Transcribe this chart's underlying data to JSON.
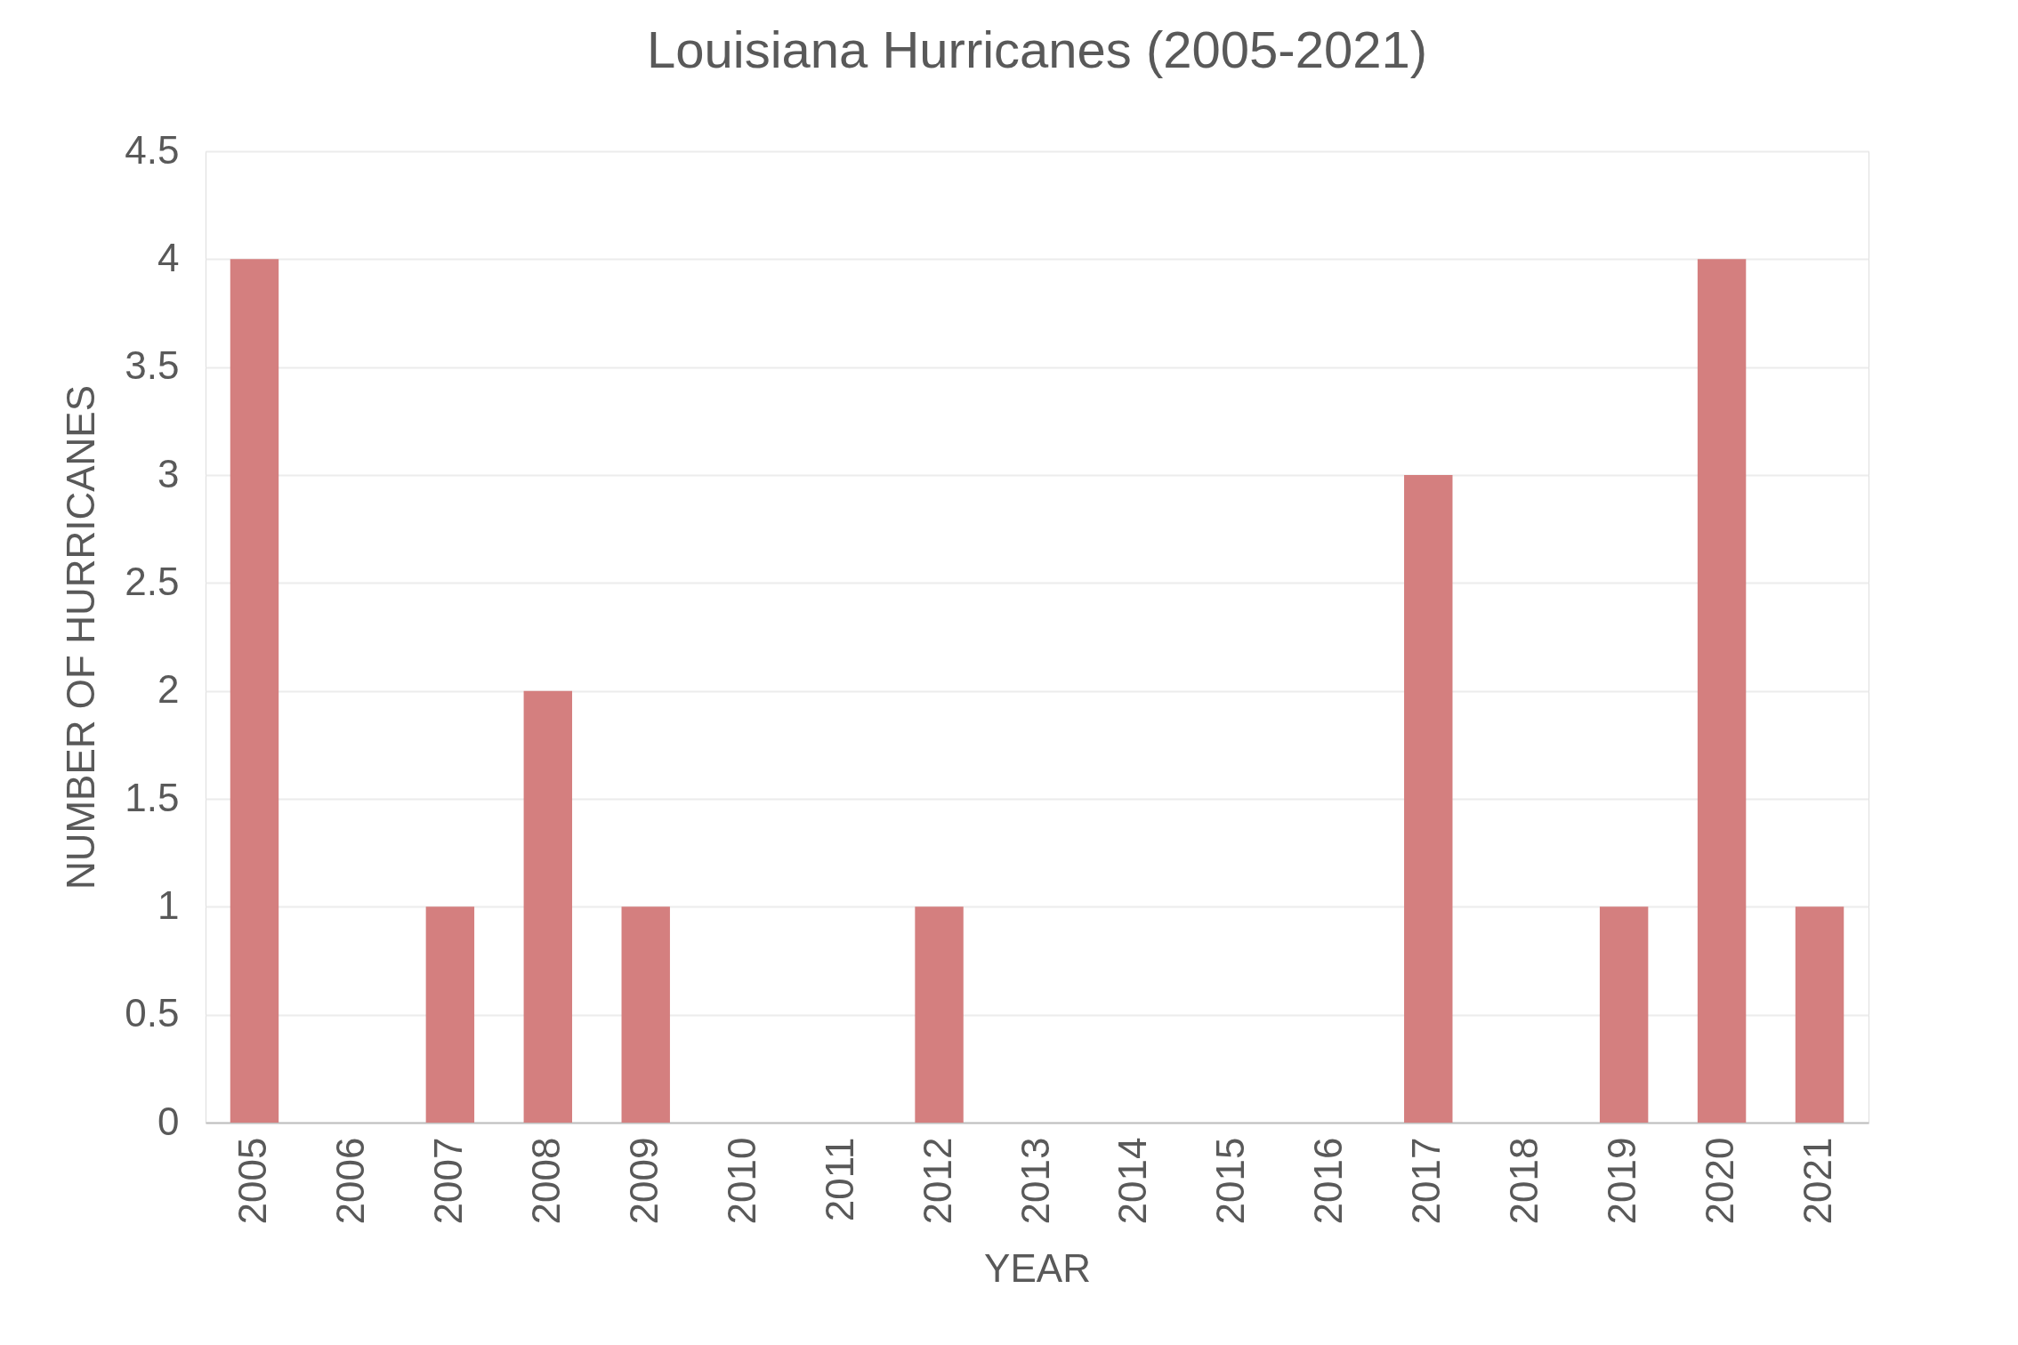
{
  "chart_data": {
    "type": "bar",
    "title": "Louisiana Hurricanes (2005-2021)",
    "xlabel": "YEAR",
    "ylabel": "NUMBER OF HURRICANES",
    "categories": [
      "2005",
      "2006",
      "2007",
      "2008",
      "2009",
      "2010",
      "2011",
      "2012",
      "2013",
      "2014",
      "2015",
      "2016",
      "2017",
      "2018",
      "2019",
      "2020",
      "2021"
    ],
    "values": [
      4,
      0,
      1,
      2,
      1,
      0,
      0,
      1,
      0,
      0,
      0,
      0,
      3,
      0,
      1,
      4,
      1
    ],
    "color": "#d47f7f",
    "ylim": [
      0,
      4.5
    ],
    "yticks": [
      0,
      0.5,
      1,
      1.5,
      2,
      2.5,
      3,
      3.5,
      4,
      4.5
    ],
    "grid": "y"
  }
}
